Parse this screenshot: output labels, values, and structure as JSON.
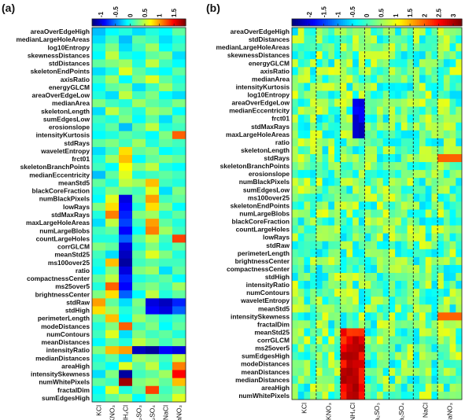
{
  "chart_data": [
    {
      "type": "heatmap",
      "panel_label": "(a)",
      "colorbar": {
        "min": -1.3,
        "max": 1.9,
        "ticks": [
          "-1",
          "-0.5",
          "0",
          "0.5",
          "1",
          "1.5"
        ],
        "tick_values": [
          -1,
          -0.5,
          0,
          0.5,
          1,
          1.5
        ]
      },
      "columns": [
        "KCl",
        "KNO₃",
        "NH₄Cl",
        "Na₂SO₃",
        "Na₂SO₄",
        "NaCl",
        "NaNO₃"
      ],
      "rows": [
        "areaOverEdgeHigh",
        "medianLargeHoleAreas",
        "log10Entropy",
        "skewnessDistances",
        "stdDistances",
        "skeletonEndPoints",
        "axisRatio",
        "energyGLCM",
        "areaOverEdgeLow",
        "medianArea",
        "skeletonLength",
        "sumEdgesLow",
        "erosionslope",
        "intensityKurtosis",
        "stdRays",
        "waveletEntropy",
        "frct01",
        "skeletonBranchPoints",
        "medianEccentricity",
        "meanStd5",
        "blackCoreFraction",
        "numBlackPixels",
        "lowRays",
        "stdMaxRays",
        "maxLargeHoleAreas",
        "numLargeBlobs",
        "countLargeHoles",
        "corrGLCM",
        "meanStd25",
        "ms100over25",
        "ratio",
        "compactnessCenter",
        "ms25over5",
        "brightnessCenter",
        "stdRaw",
        "stdHigh",
        "perimeterLength",
        "modeDistances",
        "numContours",
        "meanDistances",
        "intensityRatio",
        "medianDistances",
        "areaHigh",
        "intensitySkewness",
        "numWhitePixels",
        "fractalDim",
        "sumEdgesHigh"
      ],
      "values": [
        [
          -0.3,
          -0.1,
          0.0,
          -0.2,
          0.0,
          -0.1,
          0.2
        ],
        [
          -0.2,
          0.1,
          -0.3,
          0.2,
          0.1,
          -0.2,
          0.0
        ],
        [
          0.0,
          0.3,
          -0.2,
          0.1,
          0.4,
          -0.1,
          0.1
        ],
        [
          -0.1,
          0.5,
          0.0,
          -0.1,
          0.2,
          0.3,
          -0.2
        ],
        [
          0.2,
          0.3,
          0.4,
          0.0,
          0.5,
          0.1,
          -0.1
        ],
        [
          -0.2,
          0.0,
          0.6,
          0.2,
          0.0,
          -0.1,
          0.2
        ],
        [
          0.1,
          0.4,
          -0.1,
          0.3,
          0.6,
          0.2,
          0.0
        ],
        [
          -0.1,
          0.2,
          0.3,
          -0.2,
          0.1,
          0.4,
          0.1
        ],
        [
          0.0,
          -0.2,
          0.5,
          0.1,
          0.3,
          -0.1,
          -0.2
        ],
        [
          0.3,
          0.1,
          0.0,
          0.4,
          0.2,
          0.1,
          0.3
        ],
        [
          -0.2,
          0.5,
          0.2,
          0.0,
          0.4,
          0.3,
          -0.1
        ],
        [
          0.1,
          0.0,
          0.3,
          -0.1,
          0.2,
          -0.2,
          0.2
        ],
        [
          0.0,
          0.2,
          -0.3,
          0.2,
          0.5,
          0.0,
          0.1
        ],
        [
          -0.1,
          0.0,
          0.2,
          0.1,
          -0.1,
          0.3,
          1.2
        ],
        [
          0.2,
          0.3,
          0.1,
          0.4,
          0.0,
          0.2,
          0.1
        ],
        [
          -0.2,
          0.1,
          0.8,
          0.2,
          0.3,
          -0.1,
          0.0
        ],
        [
          0.0,
          0.4,
          0.9,
          -0.1,
          0.2,
          0.3,
          0.2
        ],
        [
          0.1,
          -0.1,
          0.7,
          0.3,
          0.5,
          0.0,
          -0.1
        ],
        [
          -0.3,
          0.2,
          0.6,
          0.0,
          0.1,
          0.2,
          0.1
        ],
        [
          0.2,
          0.0,
          0.5,
          0.4,
          0.9,
          0.1,
          0.0
        ],
        [
          0.0,
          0.3,
          0.2,
          0.1,
          0.6,
          -0.2,
          0.3
        ],
        [
          -0.1,
          0.6,
          -1.0,
          0.2,
          1.0,
          0.1,
          0.2
        ],
        [
          0.3,
          0.8,
          -0.9,
          0.0,
          0.8,
          0.3,
          -0.1
        ],
        [
          0.0,
          1.1,
          -0.8,
          0.3,
          0.4,
          0.0,
          0.2
        ],
        [
          -0.2,
          0.5,
          -0.7,
          0.1,
          1.0,
          0.2,
          0.0
        ],
        [
          0.1,
          0.2,
          -0.9,
          -0.1,
          1.1,
          0.4,
          0.1
        ],
        [
          0.0,
          0.0,
          -0.6,
          0.2,
          0.5,
          0.1,
          1.3
        ],
        [
          0.3,
          0.2,
          -1.0,
          0.0,
          0.3,
          0.0,
          0.2
        ],
        [
          0.1,
          -0.2,
          -1.1,
          0.2,
          0.6,
          0.3,
          0.0
        ],
        [
          0.0,
          0.9,
          -1.2,
          0.1,
          0.2,
          0.1,
          0.1
        ],
        [
          -0.1,
          0.3,
          -1.0,
          0.3,
          0.4,
          -0.2,
          0.2
        ],
        [
          0.2,
          0.5,
          -0.8,
          0.0,
          0.1,
          0.2,
          -0.1
        ],
        [
          0.0,
          1.2,
          -0.9,
          0.2,
          0.3,
          0.1,
          0.4
        ],
        [
          0.3,
          0.8,
          -0.6,
          -0.1,
          0.5,
          0.0,
          0.2
        ],
        [
          1.0,
          0.2,
          -0.2,
          0.3,
          -1.0,
          -1.1,
          -0.8
        ],
        [
          0.8,
          0.4,
          0.0,
          0.2,
          -0.9,
          -1.0,
          -0.6
        ],
        [
          0.2,
          0.9,
          -0.1,
          0.4,
          0.2,
          0.0,
          0.1
        ],
        [
          0.0,
          0.3,
          1.2,
          0.1,
          0.3,
          -0.1,
          0.2
        ],
        [
          0.1,
          0.6,
          -0.2,
          0.3,
          0.1,
          0.2,
          0.0
        ],
        [
          -0.1,
          0.2,
          0.0,
          0.5,
          0.3,
          0.1,
          0.3
        ],
        [
          0.3,
          0.9,
          1.0,
          -1.1,
          -1.2,
          -0.9,
          -1.0
        ],
        [
          0.0,
          0.2,
          -0.2,
          0.4,
          0.3,
          0.1,
          0.5
        ],
        [
          0.1,
          -0.1,
          0.6,
          0.2,
          0.5,
          0.0,
          1.1
        ],
        [
          -0.2,
          0.3,
          -1.2,
          0.1,
          0.2,
          0.4,
          1.5
        ],
        [
          0.2,
          0.1,
          1.8,
          0.3,
          0.4,
          0.2,
          0.9
        ],
        [
          -0.1,
          0.6,
          0.0,
          0.2,
          1.3,
          0.1,
          0.3
        ],
        [
          0.0,
          0.2,
          0.4,
          -0.1,
          0.3,
          0.2,
          0.6
        ]
      ]
    },
    {
      "type": "heatmap",
      "panel_label": "(b)",
      "colorbar": {
        "min": -2.6,
        "max": 3.3,
        "ticks": [
          "-2",
          "-1.5",
          "-1",
          "-0.5",
          "0",
          "0.5",
          "1",
          "1.5",
          "2",
          "2.5",
          "3"
        ],
        "tick_values": [
          -2,
          -1.5,
          -1,
          -0.5,
          0,
          0.5,
          1,
          1.5,
          2,
          2.5,
          3
        ]
      },
      "columns": [
        "KCl",
        "KNO₃",
        "NH₄Cl",
        "Na₂SO₃",
        "Na₂SO₄",
        "NaCl",
        "NaNO₃"
      ],
      "subcolumns_per_group": 4,
      "rows": [
        "areaOverEdgeHigh",
        "stdDistances",
        "medianLargeHoleAreas",
        "skewnessDistances",
        "energyGLCM",
        "axisRatio",
        "medianArea",
        "intensityKurtosis",
        "log10Entropy",
        "areaOverEdgeLow",
        "medianEccentricity",
        "frct01",
        "stdMaxRays",
        "maxLargeHoleAreas",
        "ratio",
        "skeletonLength",
        "stdRays",
        "skeletonBranchPoints",
        "erosionslope",
        "numBlackPixels",
        "sumEdgesLow",
        "ms100over25",
        "skeletonEndPoints",
        "numLargeBlobs",
        "blackCoreFraction",
        "countLargeHoles",
        "lowRays",
        "stdRaw",
        "perimeterLength",
        "brightnessCenter",
        "compactnessCenter",
        "stdHigh",
        "intensityRatio",
        "numContours",
        "waveletEntropy",
        "meanStd5",
        "intensitySkewness",
        "fractalDim",
        "meanStd25",
        "corrGLCM",
        "ms25over5",
        "sumEdgesHigh",
        "modeDistances",
        "meanDistances",
        "medianDistances",
        "areaHigh",
        "numWhitePixels"
      ]
    }
  ]
}
